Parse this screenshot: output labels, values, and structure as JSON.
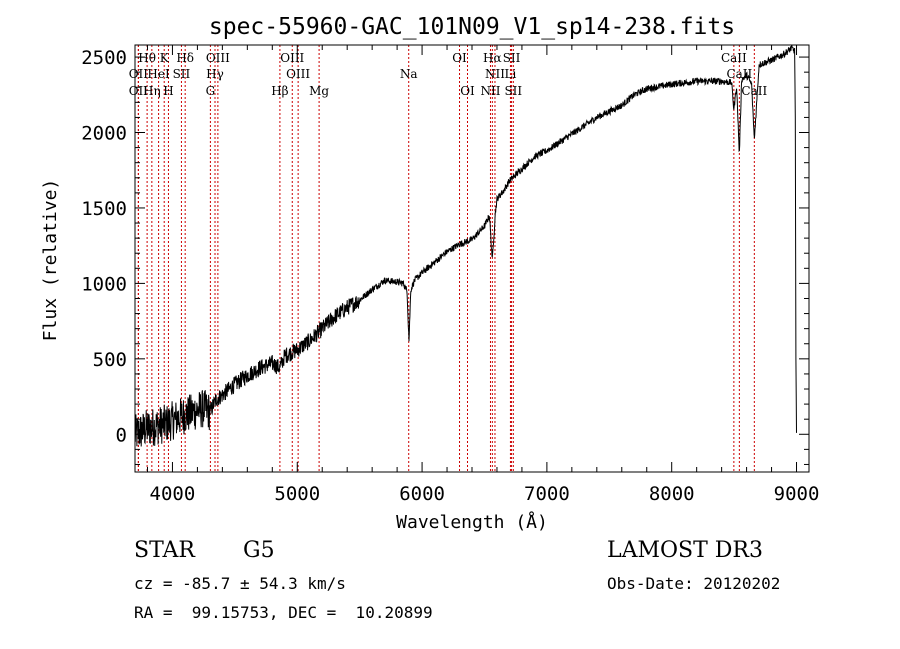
{
  "chart_data": {
    "type": "line",
    "title": "spec-55960-GAC_101N09_V1_sp14-238.fits",
    "xlabel": "Wavelength (Å)",
    "ylabel": "Flux (relative)",
    "xlim": [
      3700,
      9100
    ],
    "ylim": [
      -250,
      2580
    ],
    "xticks": [
      4000,
      5000,
      6000,
      7000,
      8000,
      9000
    ],
    "yticks": [
      0,
      500,
      1000,
      1500,
      2000,
      2500
    ],
    "line_color": "#000000",
    "marker_color": "#cc0000",
    "series": [
      {
        "name": "flux",
        "x": [
          3700,
          3750,
          3800,
          3850,
          3900,
          3950,
          4000,
          4050,
          4100,
          4150,
          4200,
          4250,
          4300,
          4350,
          4400,
          4500,
          4600,
          4700,
          4800,
          4860,
          4900,
          5000,
          5100,
          5200,
          5300,
          5400,
          5500,
          5600,
          5700,
          5800,
          5850,
          5880,
          5895,
          5910,
          5940,
          6000,
          6100,
          6200,
          6300,
          6400,
          6500,
          6540,
          6563,
          6585,
          6600,
          6650,
          6700,
          6800,
          6900,
          7000,
          7200,
          7400,
          7600,
          7700,
          7800,
          8000,
          8200,
          8400,
          8480,
          8498,
          8520,
          8542,
          8560,
          8600,
          8640,
          8662,
          8700,
          8800,
          8900,
          8960,
          8985,
          8990,
          8995,
          9000
        ],
        "y": [
          0,
          20,
          40,
          50,
          60,
          70,
          90,
          110,
          130,
          140,
          160,
          170,
          150,
          230,
          260,
          330,
          390,
          440,
          470,
          440,
          520,
          560,
          620,
          700,
          780,
          840,
          890,
          960,
          1020,
          1010,
          1000,
          950,
          620,
          960,
          1020,
          1070,
          1140,
          1210,
          1260,
          1290,
          1380,
          1450,
          1150,
          1450,
          1560,
          1610,
          1680,
          1760,
          1840,
          1880,
          1990,
          2100,
          2180,
          2250,
          2290,
          2320,
          2340,
          2340,
          2330,
          2150,
          2310,
          1850,
          2350,
          2380,
          2320,
          1950,
          2450,
          2480,
          2520,
          2560,
          2540,
          2100,
          500,
          0
        ]
      }
    ],
    "line_markers": [
      {
        "label": "Hθ",
        "x": 3797,
        "row": 1
      },
      {
        "label": "K",
        "x": 3934,
        "row": 1
      },
      {
        "label": "Hδ",
        "x": 4102,
        "row": 1
      },
      {
        "label": "OIII",
        "x": 4364,
        "row": 1
      },
      {
        "label": "OIII",
        "x": 4960,
        "row": 1
      },
      {
        "label": "OI",
        "x": 6300,
        "row": 1
      },
      {
        "label": "Hα",
        "x": 6563,
        "row": 1
      },
      {
        "label": "SII",
        "x": 6717,
        "row": 1
      },
      {
        "label": "CaII",
        "x": 8498,
        "row": 1
      },
      {
        "label": "OII",
        "x": 3727,
        "row": 2
      },
      {
        "label": "HeI",
        "x": 3889,
        "row": 2
      },
      {
        "label": "SII",
        "x": 4072,
        "row": 2
      },
      {
        "label": "Hγ",
        "x": 4341,
        "row": 2
      },
      {
        "label": "OIII",
        "x": 5007,
        "row": 2
      },
      {
        "label": "Na",
        "x": 5893,
        "row": 2
      },
      {
        "label": "NII",
        "x": 6584,
        "row": 2
      },
      {
        "label": "Li",
        "x": 6708,
        "row": 2
      },
      {
        "label": "CaII",
        "x": 8542,
        "row": 2
      },
      {
        "label": "OII",
        "x": 3727,
        "row": 3
      },
      {
        "label": "Hη",
        "x": 3835,
        "row": 3
      },
      {
        "label": "H",
        "x": 3968,
        "row": 3
      },
      {
        "label": "G",
        "x": 4304,
        "row": 3
      },
      {
        "label": "Hβ",
        "x": 4861,
        "row": 3
      },
      {
        "label": "Mg",
        "x": 5175,
        "row": 3
      },
      {
        "label": "OI",
        "x": 6364,
        "row": 3
      },
      {
        "label": "NII",
        "x": 6548,
        "row": 3
      },
      {
        "label": "SII",
        "x": 6731,
        "row": 3
      },
      {
        "label": "CaII",
        "x": 8662,
        "row": 3
      }
    ]
  },
  "info": {
    "class": "STAR",
    "subclass": "G5",
    "survey": "LAMOST DR3",
    "cz": "cz = -85.7 ± 54.3 km/s",
    "obs_date": "Obs-Date: 20120202",
    "coords": "RA =  99.15753, DEC =  10.20899"
  }
}
